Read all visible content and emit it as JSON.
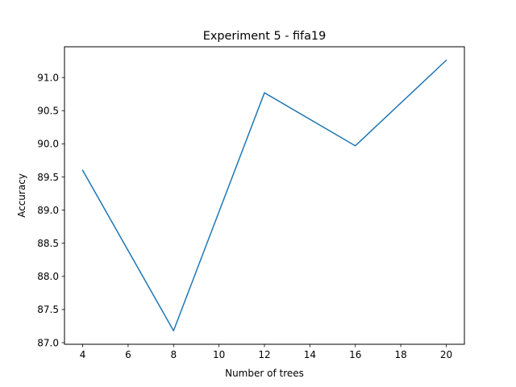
{
  "chart_data": {
    "type": "line",
    "title": "Experiment 5 - fifa19",
    "xlabel": "Number of trees",
    "ylabel": "Accuracy",
    "x": [
      4,
      8,
      12,
      16,
      20
    ],
    "series": [
      {
        "values": [
          89.6,
          87.18,
          90.77,
          89.97,
          91.26
        ],
        "color": "#1f77b4"
      }
    ],
    "xlim": [
      3.2,
      20.8
    ],
    "ylim": [
      86.976,
      91.464
    ],
    "xticks": [
      4,
      6,
      8,
      10,
      12,
      14,
      16,
      18,
      20
    ],
    "xtick_labels": [
      "4",
      "6",
      "8",
      "10",
      "12",
      "14",
      "16",
      "18",
      "20"
    ],
    "yticks": [
      87.0,
      87.5,
      88.0,
      88.5,
      89.0,
      89.5,
      90.0,
      90.5,
      91.0
    ],
    "ytick_labels": [
      "87.0",
      "87.5",
      "88.0",
      "88.5",
      "89.0",
      "89.5",
      "90.0",
      "90.5",
      "91.0"
    ],
    "grid": false,
    "legend": "none"
  }
}
